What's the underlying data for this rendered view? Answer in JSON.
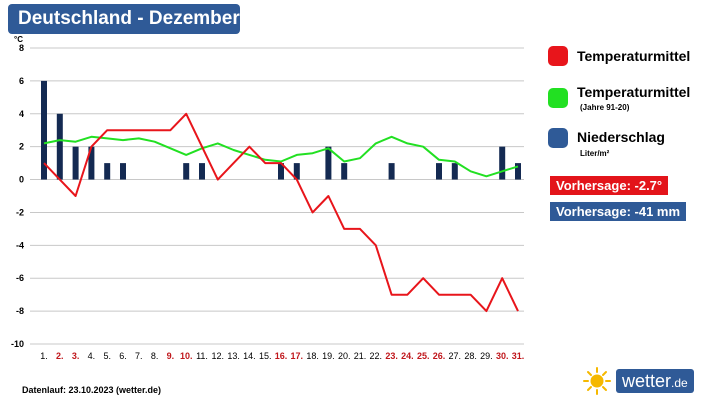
{
  "title": "Deutschland - Dezember",
  "legend": {
    "temp_mean": {
      "label": "Temperaturmittel",
      "color": "#e8151b"
    },
    "temp_clim": {
      "label": "Temperaturmittel",
      "sub": "(Jahre 91-20)",
      "color": "#22e022"
    },
    "precip": {
      "label": "Niederschlag",
      "sub": "Liter/m²",
      "color": "#1f3f73"
    }
  },
  "badges": {
    "temp_forecast": "Vorhersage: -2.7°",
    "precip_forecast": "Vorhersage: -41 mm"
  },
  "footer": "Datenlauf: 23.10.2023 (wetter.de)",
  "logo": {
    "text": "wetter",
    "tld": ".de"
  },
  "chart_data": {
    "type": "bar+line",
    "yunit": "°C",
    "ylim": [
      -10,
      8
    ],
    "yticks": [
      8,
      6,
      4,
      2,
      0,
      -2,
      -4,
      -6,
      -8,
      -10
    ],
    "categories": [
      "1.",
      "2.",
      "3.",
      "4.",
      "5.",
      "6.",
      "7.",
      "8.",
      "9.",
      "10.",
      "11.",
      "12.",
      "13.",
      "14.",
      "15.",
      "16.",
      "17.",
      "18.",
      "19.",
      "20.",
      "21.",
      "22.",
      "23.",
      "24.",
      "25.",
      "26.",
      "27.",
      "28.",
      "29.",
      "30.",
      "31."
    ],
    "weekend_red": [
      false,
      true,
      true,
      false,
      false,
      false,
      false,
      false,
      true,
      true,
      false,
      false,
      false,
      false,
      false,
      true,
      true,
      false,
      false,
      false,
      false,
      false,
      true,
      true,
      true,
      true,
      false,
      false,
      false,
      true,
      true
    ],
    "series": [
      {
        "name": "Niederschlag",
        "kind": "bar",
        "color": "#142a52",
        "values": [
          6,
          4,
          2,
          2,
          1,
          1,
          0,
          0,
          0,
          1,
          1,
          0,
          0,
          0,
          0,
          1,
          1,
          0,
          2,
          1,
          0,
          0,
          1,
          0,
          0,
          1,
          1,
          0,
          0,
          2,
          1
        ]
      },
      {
        "name": "Temperaturmittel",
        "kind": "line",
        "color": "#e8151b",
        "values": [
          1,
          0,
          -1,
          2,
          3,
          3,
          3,
          3,
          3,
          4,
          2,
          0,
          1,
          2,
          1,
          1,
          0,
          -2,
          -1,
          -3,
          -3,
          -4,
          -7,
          -7,
          -6,
          -7,
          -7,
          -7,
          -8,
          -6,
          -8
        ]
      },
      {
        "name": "Temperaturmittel (Jahre 91-20)",
        "kind": "line",
        "color": "#22e022",
        "values": [
          2.2,
          2.4,
          2.3,
          2.6,
          2.5,
          2.4,
          2.5,
          2.3,
          1.9,
          1.5,
          1.9,
          2.2,
          1.8,
          1.5,
          1.2,
          1.1,
          1.5,
          1.6,
          1.9,
          1.1,
          1.3,
          2.2,
          2.6,
          2.2,
          2.0,
          1.2,
          1.1,
          0.5,
          0.2,
          0.5,
          0.8
        ]
      }
    ]
  }
}
